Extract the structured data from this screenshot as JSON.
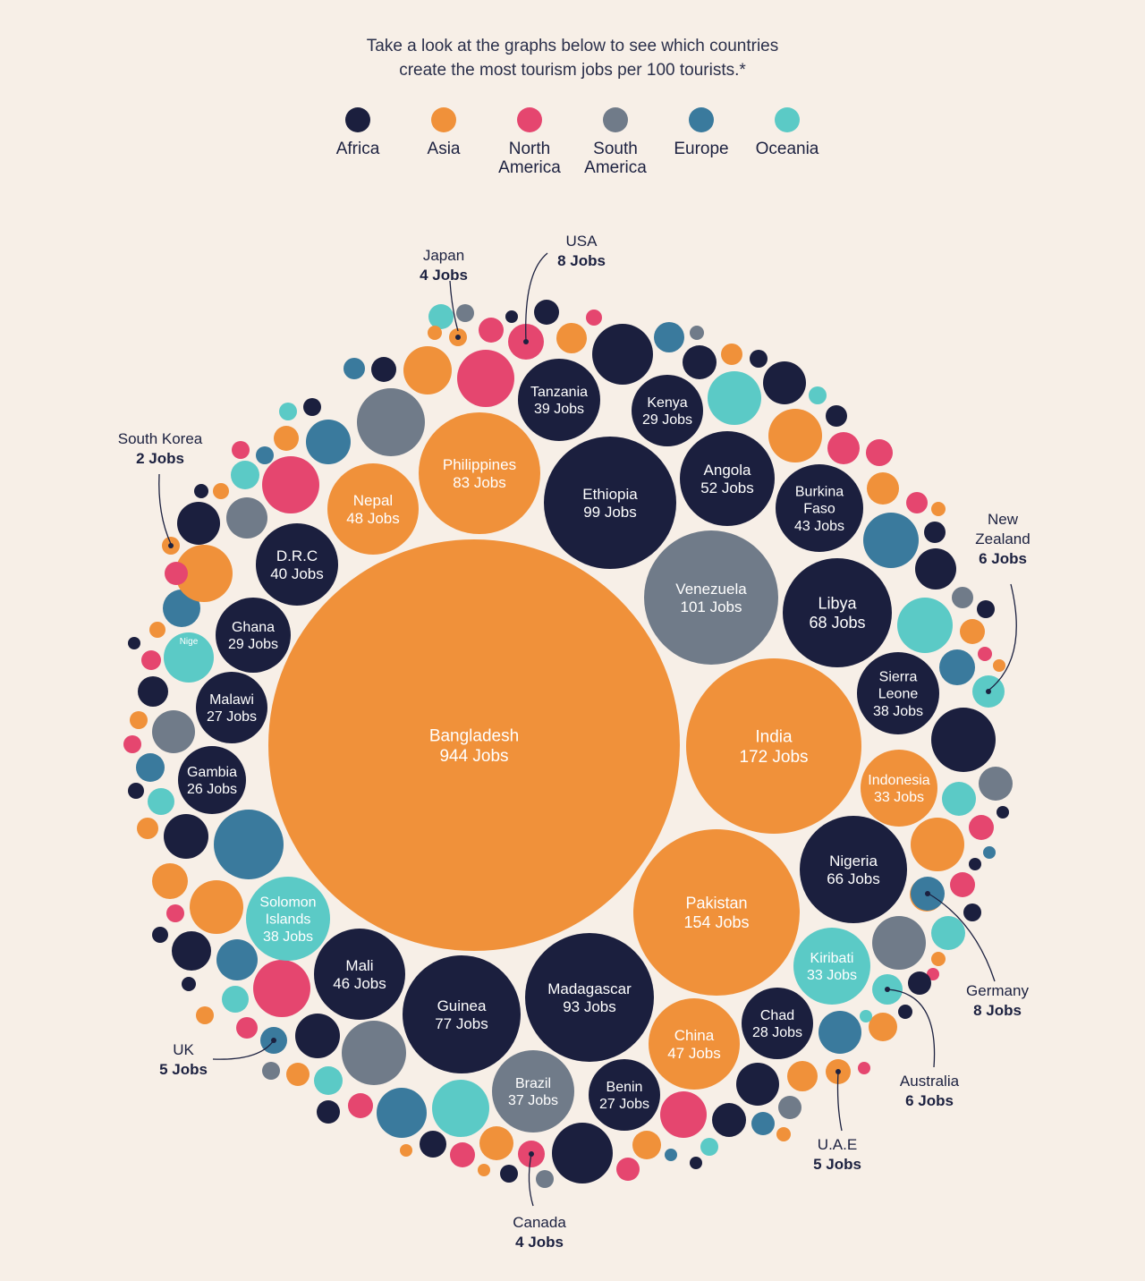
{
  "intro": {
    "line1": "Take a look at the graphs below to see which countries",
    "line2": "create the most tourism jobs per 100 tourists.*"
  },
  "colors": {
    "Africa": "#1b1f3e",
    "Asia": "#f0913a",
    "North America": "#e5466f",
    "South America": "#707b89",
    "Europe": "#3a7a9d",
    "Oceania": "#5bcac6",
    "background": "#f7efe7",
    "leader": "#1c2140"
  },
  "legend": [
    {
      "region": "Africa",
      "label": "Africa"
    },
    {
      "region": "Asia",
      "label": "Asia"
    },
    {
      "region": "North America",
      "label": "North\nAmerica"
    },
    {
      "region": "South America",
      "label": "South\nAmerica"
    },
    {
      "region": "Europe",
      "label": "Europe"
    },
    {
      "region": "Oceania",
      "label": "Oceania"
    }
  ],
  "chart_data": {
    "type": "bubble",
    "title": "",
    "legend_position": "top",
    "labeled_points": [
      {
        "country": "Bangladesh",
        "jobs": 944,
        "jobs_label": "944 Jobs",
        "region": "Asia"
      },
      {
        "country": "India",
        "jobs": 172,
        "jobs_label": "172 Jobs",
        "region": "Asia"
      },
      {
        "country": "Pakistan",
        "jobs": 154,
        "jobs_label": "154 Jobs",
        "region": "Asia"
      },
      {
        "country": "Venezuela",
        "jobs": 101,
        "jobs_label": "101 Jobs",
        "region": "South America"
      },
      {
        "country": "Ethiopia",
        "jobs": 99,
        "jobs_label": "99 Jobs",
        "region": "Africa"
      },
      {
        "country": "Madagascar",
        "jobs": 93,
        "jobs_label": "93 Jobs",
        "region": "Africa"
      },
      {
        "country": "Philippines",
        "jobs": 83,
        "jobs_label": "83 Jobs",
        "region": "Asia"
      },
      {
        "country": "Guinea",
        "jobs": 77,
        "jobs_label": "77 Jobs",
        "region": "Africa"
      },
      {
        "country": "Libya",
        "jobs": 68,
        "jobs_label": "68 Jobs",
        "region": "Africa"
      },
      {
        "country": "Nigeria",
        "jobs": 66,
        "jobs_label": "66 Jobs",
        "region": "Africa"
      },
      {
        "country": "Angola",
        "jobs": 52,
        "jobs_label": "52 Jobs",
        "region": "Africa"
      },
      {
        "country": "Nepal",
        "jobs": 48,
        "jobs_label": "48 Jobs",
        "region": "Asia"
      },
      {
        "country": "China",
        "jobs": 47,
        "jobs_label": "47 Jobs",
        "region": "Asia"
      },
      {
        "country": "Mali",
        "jobs": 46,
        "jobs_label": "46 Jobs",
        "region": "Africa"
      },
      {
        "country": "Burkina\nFaso",
        "jobs": 43,
        "jobs_label": "43 Jobs",
        "region": "Africa"
      },
      {
        "country": "D.R.C",
        "jobs": 40,
        "jobs_label": "40 Jobs",
        "region": "Africa"
      },
      {
        "country": "Tanzania",
        "jobs": 39,
        "jobs_label": "39 Jobs",
        "region": "Africa"
      },
      {
        "country": "Sierra\nLeone",
        "jobs": 38,
        "jobs_label": "38 Jobs",
        "region": "Africa"
      },
      {
        "country": "Solomon\nIslands",
        "jobs": 38,
        "jobs_label": "38 Jobs",
        "region": "Oceania"
      },
      {
        "country": "Brazil",
        "jobs": 37,
        "jobs_label": "37 Jobs",
        "region": "South America"
      },
      {
        "country": "Indonesia",
        "jobs": 33,
        "jobs_label": "33 Jobs",
        "region": "Asia"
      },
      {
        "country": "Kiribati",
        "jobs": 33,
        "jobs_label": "33 Jobs",
        "region": "Oceania"
      },
      {
        "country": "Ghana",
        "jobs": 29,
        "jobs_label": "29 Jobs",
        "region": "Africa"
      },
      {
        "country": "Kenya",
        "jobs": 29,
        "jobs_label": "29 Jobs",
        "region": "Africa"
      },
      {
        "country": "Chad",
        "jobs": 28,
        "jobs_label": "28 Jobs",
        "region": "Africa"
      },
      {
        "country": "Malawi",
        "jobs": 27,
        "jobs_label": "27 Jobs",
        "region": "Africa"
      },
      {
        "country": "Benin",
        "jobs": 27,
        "jobs_label": "27 Jobs",
        "region": "Africa"
      },
      {
        "country": "Gambia",
        "jobs": 26,
        "jobs_label": "26 Jobs",
        "region": "Africa"
      }
    ],
    "callouts": [
      {
        "country": "Japan",
        "jobs": 4,
        "jobs_label": "4 Jobs",
        "region": "Asia"
      },
      {
        "country": "USA",
        "jobs": 8,
        "jobs_label": "8 Jobs",
        "region": "North America"
      },
      {
        "country": "South Korea",
        "jobs": 2,
        "jobs_label": "2 Jobs",
        "region": "Asia"
      },
      {
        "country": "New\nZealand",
        "jobs": 6,
        "jobs_label": "6 Jobs",
        "region": "Oceania"
      },
      {
        "country": "Germany",
        "jobs": 8,
        "jobs_label": "8 Jobs",
        "region": "Europe"
      },
      {
        "country": "Australia",
        "jobs": 6,
        "jobs_label": "6 Jobs",
        "region": "Oceania"
      },
      {
        "country": "U.A.E",
        "jobs": 5,
        "jobs_label": "5 Jobs",
        "region": "Asia"
      },
      {
        "country": "UK",
        "jobs": 5,
        "jobs_label": "5 Jobs",
        "region": "Europe"
      },
      {
        "country": "Canada",
        "jobs": 4,
        "jobs_label": "4 Jobs",
        "region": "North America"
      }
    ],
    "cropped_label": "Nige",
    "unlabeled_regions": [
      "Africa",
      "North America",
      "Asia",
      "South America",
      "Europe",
      "Oceania",
      "Africa",
      "Asia",
      "North America",
      "Africa",
      "Europe",
      "Asia",
      "Africa",
      "North America",
      "South America",
      "Africa",
      "Oceania",
      "Asia",
      "Africa",
      "Europe",
      "North America",
      "Asia",
      "Africa",
      "South America",
      "Oceania",
      "Africa",
      "North America",
      "Asia",
      "Europe",
      "Africa",
      "Asia",
      "North America",
      "Africa",
      "Oceania",
      "South America",
      "Asia",
      "Africa",
      "Europe",
      "North America",
      "Asia",
      "Africa",
      "South America",
      "Oceania",
      "North America",
      "Africa",
      "Asia",
      "Europe",
      "Africa",
      "North America",
      "Asia",
      "Oceania",
      "Africa",
      "South America",
      "Asia",
      "North America",
      "Africa",
      "Europe",
      "Asia",
      "Africa",
      "Oceania",
      "North America",
      "Asia",
      "Africa",
      "South America",
      "Europe",
      "Africa",
      "Asia",
      "North America",
      "Oceania",
      "Africa",
      "Asia",
      "Europe",
      "North America",
      "Africa",
      "South America",
      "Asia",
      "Africa",
      "Oceania",
      "North America",
      "Asia",
      "Africa",
      "Europe",
      "Asia",
      "North America",
      "Africa",
      "South America",
      "Oceania",
      "Asia",
      "Africa",
      "North America",
      "Europe",
      "Asia",
      "Africa",
      "Oceania",
      "North America",
      "Asia",
      "Africa",
      "South America",
      "Europe",
      "Africa",
      "Asia",
      "North America",
      "Africa",
      "Oceania",
      "Asia",
      "Europe",
      "Africa",
      "North America",
      "South America",
      "Asia",
      "Africa",
      "Oceania",
      "North America",
      "Asia",
      "Africa",
      "Europe",
      "Asia",
      "North America",
      "Africa",
      "South America",
      "Oceania",
      "Asia",
      "Africa",
      "North America",
      "Europe",
      "Asia",
      "Africa",
      "Oceania",
      "North America",
      "Asia",
      "Africa",
      "South America",
      "Europe",
      "Asia",
      "Africa",
      "North America",
      "Oceania",
      "Asia",
      "Africa",
      "Europe",
      "North America",
      "Asia",
      "Africa",
      "South America",
      "Oceania",
      "Asia",
      "Africa",
      "North America",
      "Europe",
      "Asia",
      "Africa",
      "Oceania",
      "North America",
      "Asia",
      "Africa",
      "South America",
      "Europe",
      "Asia",
      "Africa",
      "North America",
      "Oceania",
      "Asia",
      "Africa",
      "Europe",
      "North America",
      "Asia",
      "Africa",
      "South America",
      "Oceania",
      "Asia",
      "Africa",
      "North America",
      "Europe",
      "Asia",
      "Africa",
      "Oceania",
      "North America",
      "Asia",
      "Africa",
      "South America",
      "Europe",
      "Asia",
      "Africa",
      "North America",
      "Oceania",
      "Asia",
      "Africa",
      "Europe",
      "North America",
      "Asia"
    ]
  }
}
